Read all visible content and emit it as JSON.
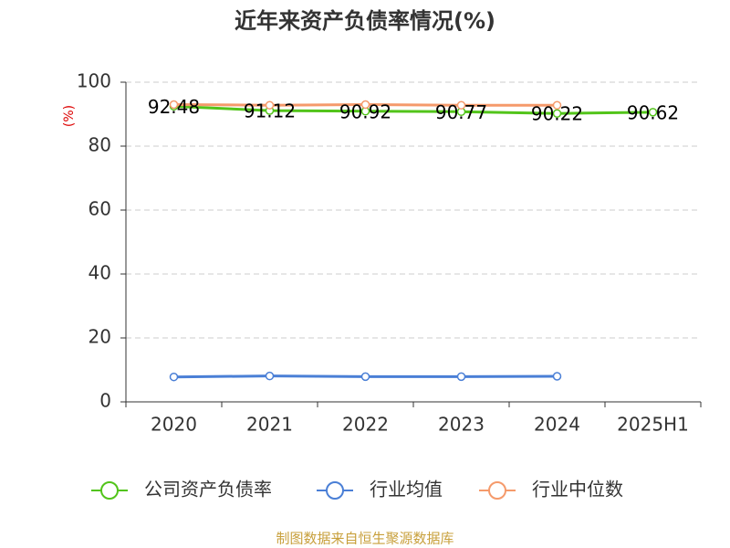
{
  "chart_data": {
    "type": "line",
    "title": "近年来资产负债率情况(%)",
    "y_label": "(%)",
    "categories": [
      "2020",
      "2021",
      "2022",
      "2023",
      "2024",
      "2025H1"
    ],
    "series": [
      {
        "name": "公司资产负债率",
        "color": "#52c41a",
        "values": [
          92.48,
          91.12,
          90.92,
          90.77,
          90.22,
          90.62
        ],
        "show_labels": true
      },
      {
        "name": "行业均值",
        "color": "#4a7fd6",
        "values": [
          7.8,
          8.1,
          7.9,
          7.9,
          8.0,
          null
        ]
      },
      {
        "name": "行业中位数",
        "color": "#f59a6b",
        "values": [
          93.0,
          92.8,
          93.0,
          92.8,
          92.8,
          null
        ]
      }
    ],
    "ylim": [
      0,
      100
    ],
    "yticks": [
      0,
      20,
      40,
      60,
      80,
      100
    ],
    "grid": true,
    "source": "制图数据来自恒生聚源数据库"
  }
}
